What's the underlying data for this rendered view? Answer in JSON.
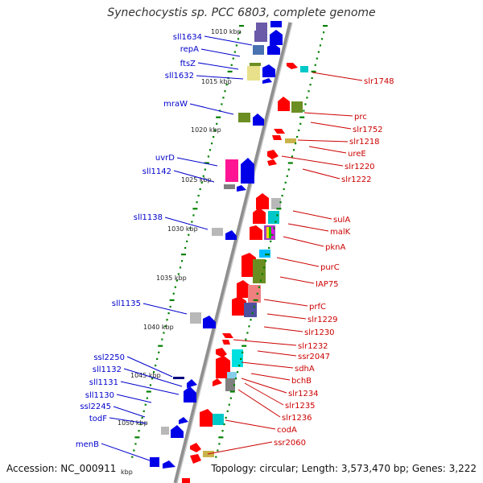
{
  "header": {
    "title": "Synechocystis sp. PCC 6803, complete genome"
  },
  "footer": {
    "accession": "Accession: NC_000911",
    "summary": "Topology: circular; Length: 3,573,470 bp; Genes: 3,222"
  },
  "colors": {
    "minus_strand": "#0000ff",
    "plus_strand": "#e00000",
    "backbone": "#9a9a9a",
    "tick": "#008000"
  },
  "kbp_ticks": [
    "1010 kbp",
    "1015 kbp",
    "1020 kbp",
    "1025 kbp",
    "1030 kbp",
    "1035 kbp",
    "1040 kbp",
    "1045 kbp",
    "1050 kbp",
    "kbp"
  ],
  "left_genes": [
    "sll1634",
    "repA",
    "ftsZ",
    "sll1632",
    "mraW",
    "uvrD",
    "sll1142",
    "sll1138",
    "sll1135",
    "ssl2250",
    "sll1132",
    "sll1131",
    "sll1130",
    "ssl2245",
    "todF",
    "menB"
  ],
  "right_genes": [
    "slr1748",
    "prc",
    "slr1752",
    "slr1218",
    "ureE",
    "slr1220",
    "slr1222",
    "sulA",
    "malK",
    "pknA",
    "purC",
    "IAP75",
    "prfC",
    "slr1229",
    "slr1230",
    "slr1232",
    "ssr2047",
    "sdhA",
    "bchB",
    "slr1234",
    "slr1235",
    "slr1236",
    "codA",
    "ssr2060"
  ]
}
